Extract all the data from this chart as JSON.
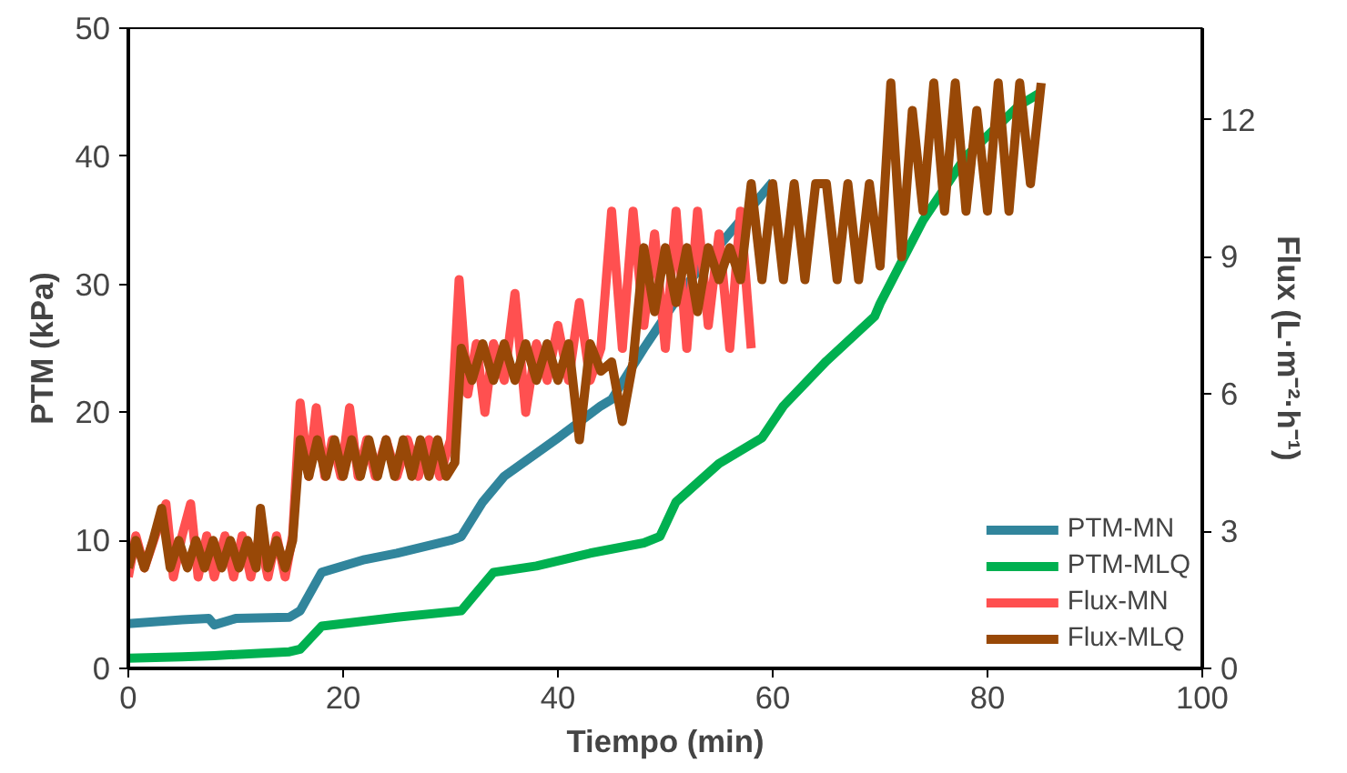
{
  "chart_data": {
    "type": "line",
    "xlabel": "Tiempo (min)",
    "ylabel": "PTM (kPa)",
    "y2label": "Flux (L·m⁻²·h⁻¹)",
    "xlim": [
      0,
      100
    ],
    "xticks": [
      0,
      20,
      40,
      60,
      80,
      100
    ],
    "ylim": [
      0,
      50
    ],
    "yticks": [
      0,
      10,
      20,
      30,
      40,
      50
    ],
    "y2lim": [
      0,
      14
    ],
    "y2ticks": [
      0,
      3,
      6,
      9,
      12
    ],
    "grid": false,
    "legend": "bottom right",
    "marker": "none",
    "line_style": "solid",
    "series": [
      {
        "name": "PTM-MN",
        "color": "#31859c",
        "x": [
          0,
          5,
          7.5,
          8,
          10,
          15,
          16,
          18,
          22,
          25,
          30,
          31,
          33,
          35,
          40,
          44,
          45,
          48,
          52,
          57,
          60
        ],
        "values": [
          3.5,
          3.8,
          3.9,
          3.4,
          3.9,
          4,
          4.5,
          7.5,
          8.5,
          9,
          10,
          10.3,
          13,
          15,
          18,
          20.5,
          21,
          25,
          30,
          35,
          38
        ]
      },
      {
        "name": "PTM-MLQ",
        "color": "#00b050",
        "x": [
          0,
          5,
          8,
          15,
          16,
          18,
          25,
          31,
          32,
          34,
          38,
          43,
          48,
          49.5,
          51,
          55,
          59,
          61,
          65,
          69.5,
          70,
          74,
          78,
          83,
          85
        ],
        "values": [
          0.8,
          0.9,
          1,
          1.3,
          1.5,
          3.3,
          4,
          4.5,
          5.5,
          7.5,
          8,
          9,
          9.8,
          10.3,
          13,
          16,
          18,
          20.5,
          24,
          27.5,
          28.5,
          35,
          40,
          44,
          45
        ]
      },
      {
        "name": "Flux-MN",
        "color": "#ff5050",
        "axis": "y2",
        "x": [
          0,
          0.7,
          1.5,
          2.5,
          3.5,
          4.2,
          5,
          5.8,
          6.5,
          7.3,
          8,
          9,
          9.8,
          10.6,
          11.4,
          12.2,
          13,
          13.8,
          14.6,
          15.3,
          16,
          16.8,
          17.5,
          18.3,
          19,
          19.8,
          20.6,
          21.4,
          22.2,
          23,
          24,
          25,
          26,
          27,
          28,
          29,
          30,
          30.8,
          31.6,
          32.4,
          33.2,
          34,
          35,
          36,
          37,
          38,
          39,
          40,
          41,
          42,
          43,
          44,
          45,
          46,
          47,
          48,
          49,
          50,
          51,
          52,
          53,
          54,
          55,
          56,
          57,
          58
        ],
        "values": [
          2.0,
          2.9,
          2.2,
          2.9,
          3.6,
          2.0,
          2.9,
          3.6,
          2.0,
          2.9,
          2.0,
          2.9,
          2.0,
          2.9,
          2.0,
          2.9,
          2.0,
          2.9,
          2.0,
          2.9,
          5.8,
          4.2,
          5.7,
          4.2,
          5.0,
          4.2,
          5.7,
          4.2,
          5.0,
          4.2,
          5.0,
          4.2,
          5.0,
          4.2,
          5.0,
          4.2,
          5.0,
          8.5,
          6.0,
          7.1,
          5.6,
          7.1,
          6.3,
          8.2,
          5.6,
          7.1,
          6.3,
          7.5,
          6.3,
          8.0,
          6.3,
          7.0,
          10.0,
          7.0,
          10.0,
          7.5,
          9.5,
          7.0,
          10.0,
          7.0,
          10.0,
          7.5,
          9.5,
          7.0,
          10.0,
          7.0
        ]
      },
      {
        "name": "Flux-MLQ",
        "color": "#984807",
        "axis": "y2",
        "x": [
          0,
          0.7,
          1.5,
          2.3,
          3.1,
          3.9,
          4.7,
          5.5,
          6.3,
          7.1,
          7.9,
          8.7,
          9.5,
          10.3,
          11.1,
          11.9,
          12.3,
          13,
          13.8,
          14.6,
          15.3,
          16,
          16.8,
          17.6,
          18.4,
          19.2,
          20,
          20.8,
          21.6,
          22.4,
          23.2,
          24,
          24.8,
          25.6,
          26.4,
          27.2,
          28,
          28.8,
          29.6,
          30.4,
          31,
          32,
          33,
          34,
          35,
          36,
          37,
          38,
          39,
          40,
          41,
          42,
          43,
          44,
          45,
          46,
          47,
          48,
          49,
          50,
          51,
          52,
          53,
          54,
          55,
          56,
          57,
          58,
          59,
          60,
          61,
          62,
          63,
          64,
          65,
          66,
          67,
          68,
          69,
          70,
          71,
          72,
          73,
          74,
          75,
          76,
          77,
          78,
          79,
          80,
          81,
          82,
          83,
          84,
          85
        ],
        "values": [
          2.2,
          2.8,
          2.2,
          2.8,
          3.5,
          2.2,
          2.8,
          2.2,
          2.8,
          2.2,
          2.8,
          2.2,
          2.8,
          2.2,
          2.8,
          2.2,
          3.5,
          2.2,
          2.8,
          2.2,
          2.8,
          5.0,
          4.2,
          5.0,
          4.2,
          5.0,
          4.2,
          5.0,
          4.2,
          5.0,
          4.2,
          5.0,
          4.2,
          5.0,
          4.2,
          5.0,
          4.2,
          5.0,
          4.2,
          4.5,
          7.0,
          6.3,
          7.1,
          6.3,
          7.1,
          6.3,
          7.1,
          6.3,
          7.1,
          6.3,
          7.1,
          5.0,
          7.1,
          6.5,
          6.7,
          5.4,
          6.7,
          9.2,
          7.8,
          9.2,
          8.0,
          9.2,
          7.8,
          9.2,
          8.5,
          9.2,
          8.5,
          10.6,
          8.5,
          10.6,
          8.5,
          10.6,
          8.5,
          10.6,
          10.6,
          8.5,
          10.6,
          8.5,
          10.6,
          8.8,
          12.8,
          9.0,
          12.2,
          10.0,
          12.8,
          10.0,
          12.8,
          10.0,
          12.2,
          10.0,
          12.8,
          10.0,
          12.8,
          10.6,
          12.8
        ]
      }
    ]
  }
}
